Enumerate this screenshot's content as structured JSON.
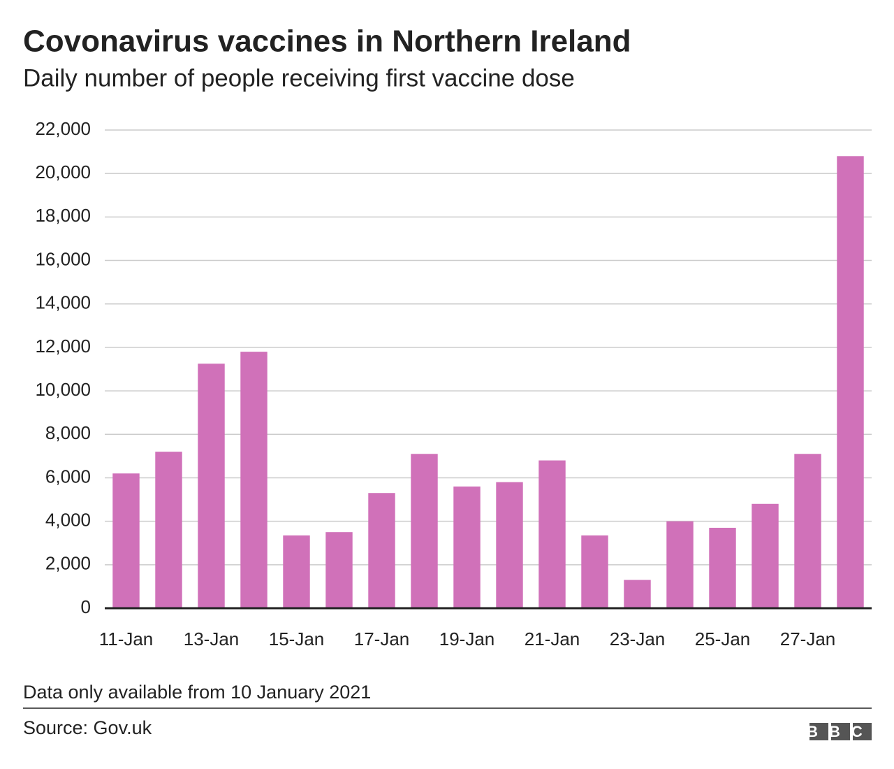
{
  "chart_data": {
    "type": "bar",
    "title": "Covonavirus vaccines in Northern Ireland",
    "subtitle": "Daily number of people receiving first vaccine dose",
    "categories": [
      "11-Jan",
      null,
      "13-Jan",
      null,
      "15-Jan",
      null,
      "17-Jan",
      null,
      "19-Jan",
      null,
      "21-Jan",
      null,
      "23-Jan",
      null,
      "25-Jan",
      null,
      "27-Jan",
      null
    ],
    "values": [
      6200,
      7200,
      11250,
      11800,
      3350,
      3500,
      5300,
      7100,
      5600,
      5800,
      6800,
      3350,
      1300,
      4000,
      3700,
      4800,
      7100,
      20800
    ],
    "color": "#d071b9",
    "ylim": [
      0,
      22000
    ],
    "yticks": [
      0,
      {
        "value": 2000,
        "label": "2,000"
      },
      {
        "value": 4000,
        "label": "4,000"
      },
      {
        "value": 6000,
        "label": "6,000"
      },
      {
        "value": 8000,
        "label": "8,000"
      },
      {
        "value": 10000,
        "label": "10,000"
      },
      {
        "value": 12000,
        "label": "12,000"
      },
      {
        "value": 14000,
        "label": "14,000"
      },
      {
        "value": 16000,
        "label": "16,000"
      },
      {
        "value": 18000,
        "label": "18,000"
      },
      {
        "value": 20000,
        "label": "20,000"
      },
      {
        "value": 22000,
        "label": "22,000"
      }
    ],
    "grid": true,
    "note": "Data only available from 10 January 2021",
    "source": "Source: Gov.uk",
    "logo": "BBC"
  }
}
